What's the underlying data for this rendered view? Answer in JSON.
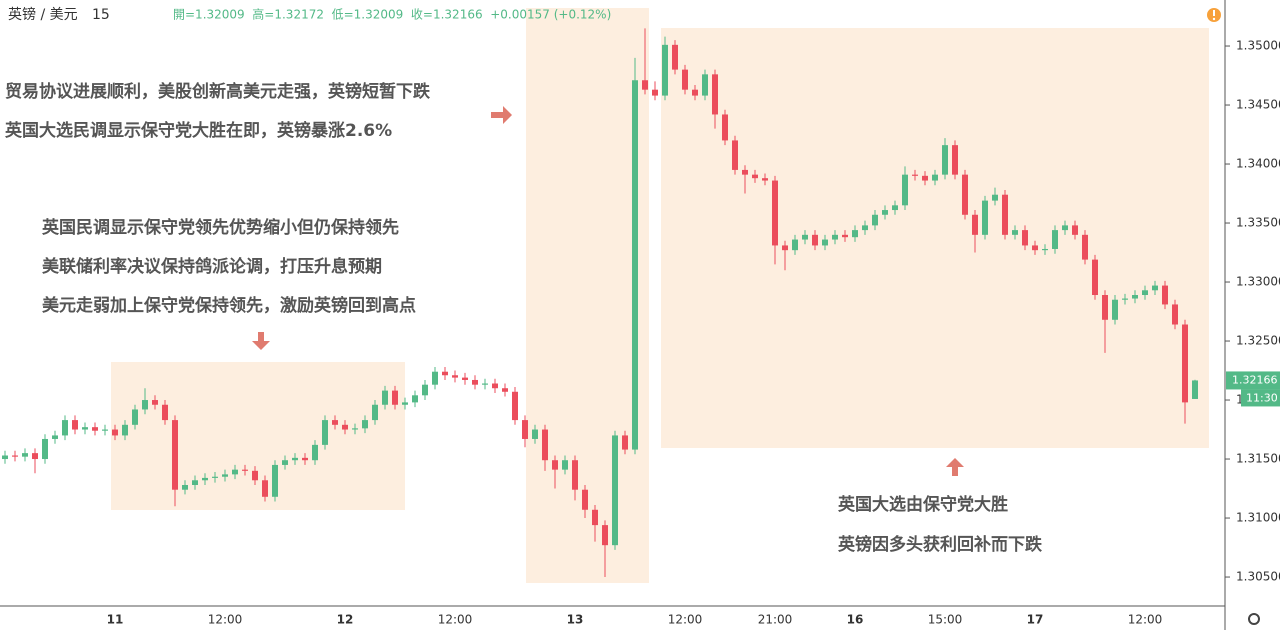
{
  "chart_data": {
    "type": "candlestick",
    "header": {
      "symbol": "英镑 / 美元",
      "interval": "15",
      "quote": "開=1.32009  高=1.32172  低=1.32009  收=1.32166  +0.00157 (+0.12%)"
    },
    "countdown": "11:30",
    "annotations": [
      [
        "贸易协议进展顺利，美股创新高美元走强，英镑短暂下跌",
        "英国大选民调显示保守党大胜在即，英镑暴涨2.6%"
      ],
      [
        "英国民调显示保守党领先优势缩小但仍保持领先",
        "美联储利率决议保持鸽派论调，打压升息预期",
        "美元走弱加上保守党保持领先，激励英镑回到高点"
      ],
      [
        "英国大选由保守党大胜",
        "英镑因多头获利回补而下跌"
      ]
    ],
    "up_color": "#53b987",
    "down_color": "#eb4d5c",
    "ylim": [
      1.30263,
      1.3539
    ],
    "yticks": [
      {
        "value": 1.305,
        "label": "1.30500"
      },
      {
        "value": 1.31,
        "label": "1.31000"
      },
      {
        "value": 1.315,
        "label": "1.31500"
      },
      {
        "value": 1.32,
        "label": "1.32000"
      },
      {
        "value": 1.325,
        "label": "1.32500"
      },
      {
        "value": 1.33,
        "label": "1.33000"
      },
      {
        "value": 1.335,
        "label": "1.33500"
      },
      {
        "value": 1.34,
        "label": "1.34000"
      },
      {
        "value": 1.345,
        "label": "1.34500"
      },
      {
        "value": 1.35,
        "label": "1.35000"
      }
    ],
    "categories": [
      null,
      null,
      null,
      null,
      null,
      null,
      null,
      null,
      null,
      null,
      null,
      "11",
      null,
      null,
      null,
      null,
      null,
      null,
      null,
      null,
      null,
      null,
      "12:00",
      null,
      null,
      null,
      null,
      null,
      null,
      null,
      null,
      null,
      null,
      null,
      "12",
      null,
      null,
      null,
      null,
      null,
      null,
      null,
      null,
      null,
      null,
      "12:00",
      null,
      null,
      null,
      null,
      null,
      null,
      null,
      null,
      null,
      null,
      null,
      "13",
      null,
      null,
      null,
      null,
      null,
      null,
      null,
      null,
      null,
      null,
      "12:00",
      null,
      null,
      null,
      null,
      null,
      null,
      null,
      null,
      "21:00",
      null,
      null,
      null,
      null,
      null,
      null,
      null,
      "16",
      null,
      null,
      null,
      null,
      null,
      null,
      null,
      null,
      "15:00",
      null,
      null,
      null,
      null,
      null,
      null,
      null,
      null,
      "17",
      null,
      null,
      null,
      null,
      null,
      null,
      null,
      null,
      null,
      null,
      "12:00",
      null,
      null,
      null,
      null,
      null
    ],
    "open": [
      1.315,
      1.3153,
      1.3152,
      1.3155,
      1.315,
      1.3167,
      1.317,
      1.3183,
      1.3175,
      1.3177,
      1.3174,
      1.3175,
      1.317,
      1.3179,
      1.3192,
      1.32,
      1.3196,
      1.3183,
      1.3124,
      1.3128,
      1.3132,
      1.3134,
      1.3135,
      1.3137,
      1.3141,
      1.314,
      1.3132,
      1.3118,
      1.3145,
      1.3149,
      1.3151,
      1.3149,
      1.3162,
      1.3183,
      1.3179,
      1.3175,
      1.3176,
      1.3183,
      1.3196,
      1.3208,
      1.3196,
      1.3198,
      1.3204,
      1.3213,
      1.3224,
      1.3221,
      1.3219,
      1.3217,
      1.3213,
      1.3214,
      1.321,
      1.3207,
      1.3183,
      1.3167,
      1.3175,
      1.3149,
      1.3141,
      1.3149,
      1.3124,
      1.3107,
      1.3094,
      1.3077,
      1.317,
      1.3158,
      1.3471,
      1.3463,
      1.3458,
      1.3501,
      1.348,
      1.3463,
      1.3458,
      1.3476,
      1.3442,
      1.342,
      1.3395,
      1.3391,
      1.3388,
      1.3386,
      1.3331,
      1.3327,
      1.3336,
      1.334,
      1.3331,
      1.3336,
      1.334,
      1.3338,
      1.3344,
      1.3348,
      1.3357,
      1.3361,
      1.3365,
      1.3391,
      1.339,
      1.3386,
      1.3391,
      1.3416,
      1.3391,
      1.3357,
      1.334,
      1.3369,
      1.3374,
      1.334,
      1.3344,
      1.3331,
      1.3327,
      1.3328,
      1.3344,
      1.3348,
      1.334,
      1.3319,
      1.3289,
      1.3268,
      1.3285,
      1.3286,
      1.3289,
      1.3293,
      1.3297,
      1.3281,
      1.3264,
      1.32009
    ],
    "high": [
      1.3157,
      1.3157,
      1.3159,
      1.3159,
      1.3171,
      1.3174,
      1.3187,
      1.3187,
      1.3181,
      1.3181,
      1.3179,
      1.3179,
      1.3183,
      1.3196,
      1.321,
      1.3204,
      1.32,
      1.3187,
      1.3132,
      1.3136,
      1.3138,
      1.3139,
      1.3141,
      1.3145,
      1.3145,
      1.3144,
      1.3136,
      1.3149,
      1.3153,
      1.3155,
      1.3155,
      1.3166,
      1.3187,
      1.3187,
      1.3183,
      1.318,
      1.3187,
      1.32,
      1.3212,
      1.3212,
      1.3202,
      1.3208,
      1.3217,
      1.3228,
      1.3228,
      1.3225,
      1.3223,
      1.3221,
      1.3218,
      1.3218,
      1.3214,
      1.3211,
      1.3187,
      1.3179,
      1.3179,
      1.3153,
      1.3153,
      1.3153,
      1.3128,
      1.3111,
      1.3098,
      1.3174,
      1.3174,
      1.349,
      1.3515,
      1.347,
      1.3508,
      1.3505,
      1.3484,
      1.3467,
      1.348,
      1.348,
      1.3446,
      1.3424,
      1.3399,
      1.3395,
      1.3392,
      1.339,
      1.3335,
      1.334,
      1.3344,
      1.3344,
      1.334,
      1.3344,
      1.3344,
      1.3348,
      1.3352,
      1.3361,
      1.3365,
      1.3369,
      1.3398,
      1.3395,
      1.3394,
      1.3395,
      1.3422,
      1.342,
      1.3395,
      1.3361,
      1.3373,
      1.338,
      1.3378,
      1.3348,
      1.3348,
      1.3335,
      1.3332,
      1.3348,
      1.3352,
      1.3352,
      1.3344,
      1.3323,
      1.3293,
      1.3289,
      1.329,
      1.3293,
      1.3297,
      1.3301,
      1.3301,
      1.3285,
      1.3268,
      1.32172
    ],
    "low": [
      1.3146,
      1.3148,
      1.3148,
      1.3138,
      1.3146,
      1.3163,
      1.3166,
      1.3171,
      1.3171,
      1.317,
      1.317,
      1.3166,
      1.3166,
      1.3175,
      1.3188,
      1.3192,
      1.3179,
      1.311,
      1.312,
      1.3124,
      1.3128,
      1.313,
      1.3131,
      1.3133,
      1.3136,
      1.3128,
      1.3114,
      1.3114,
      1.3141,
      1.3145,
      1.3145,
      1.3145,
      1.3158,
      1.3175,
      1.3171,
      1.3171,
      1.3172,
      1.3179,
      1.3192,
      1.3192,
      1.3192,
      1.3194,
      1.32,
      1.3209,
      1.3217,
      1.3215,
      1.3213,
      1.3209,
      1.3209,
      1.3206,
      1.3203,
      1.3179,
      1.316,
      1.3163,
      1.314,
      1.3125,
      1.3137,
      1.3115,
      1.31,
      1.308,
      1.305,
      1.3073,
      1.3154,
      1.3154,
      1.3459,
      1.3454,
      1.3454,
      1.3476,
      1.3459,
      1.3454,
      1.3454,
      1.343,
      1.3416,
      1.3391,
      1.3375,
      1.3384,
      1.3382,
      1.3315,
      1.331,
      1.3323,
      1.3332,
      1.3327,
      1.3327,
      1.3332,
      1.3334,
      1.3334,
      1.334,
      1.3344,
      1.3353,
      1.3357,
      1.3361,
      1.3386,
      1.3382,
      1.3382,
      1.3387,
      1.3387,
      1.3353,
      1.3325,
      1.3336,
      1.3365,
      1.3336,
      1.3336,
      1.3327,
      1.3323,
      1.3323,
      1.3324,
      1.334,
      1.3336,
      1.3315,
      1.3285,
      1.324,
      1.3264,
      1.3281,
      1.3282,
      1.3285,
      1.3289,
      1.3277,
      1.326,
      1.318,
      1.32009
    ],
    "close": [
      1.3153,
      1.3152,
      1.3155,
      1.315,
      1.3167,
      1.317,
      1.3183,
      1.3175,
      1.3177,
      1.3174,
      1.3175,
      1.317,
      1.3179,
      1.3192,
      1.32,
      1.3196,
      1.3183,
      1.3124,
      1.3128,
      1.3132,
      1.3134,
      1.3135,
      1.3137,
      1.3141,
      1.314,
      1.3132,
      1.3118,
      1.3145,
      1.3149,
      1.3151,
      1.3149,
      1.3162,
      1.3183,
      1.3179,
      1.3175,
      1.3176,
      1.3183,
      1.3196,
      1.3208,
      1.3196,
      1.3198,
      1.3204,
      1.3213,
      1.3224,
      1.3221,
      1.3219,
      1.3217,
      1.3213,
      1.3214,
      1.321,
      1.3207,
      1.3183,
      1.3167,
      1.3175,
      1.3149,
      1.3141,
      1.3149,
      1.3124,
      1.3107,
      1.3094,
      1.3077,
      1.317,
      1.3158,
      1.3471,
      1.3463,
      1.3458,
      1.3501,
      1.348,
      1.3463,
      1.3458,
      1.3476,
      1.3442,
      1.342,
      1.3395,
      1.3391,
      1.3388,
      1.3386,
      1.3331,
      1.3327,
      1.3336,
      1.334,
      1.3331,
      1.3336,
      1.334,
      1.3338,
      1.3344,
      1.3348,
      1.3357,
      1.3361,
      1.3365,
      1.3391,
      1.339,
      1.3386,
      1.3391,
      1.3416,
      1.3391,
      1.3357,
      1.334,
      1.3369,
      1.3374,
      1.334,
      1.3344,
      1.3331,
      1.3327,
      1.3328,
      1.3344,
      1.3348,
      1.334,
      1.3319,
      1.3289,
      1.3268,
      1.3285,
      1.3286,
      1.3289,
      1.3293,
      1.3297,
      1.3281,
      1.3264,
      1.3198,
      1.32166
    ]
  }
}
